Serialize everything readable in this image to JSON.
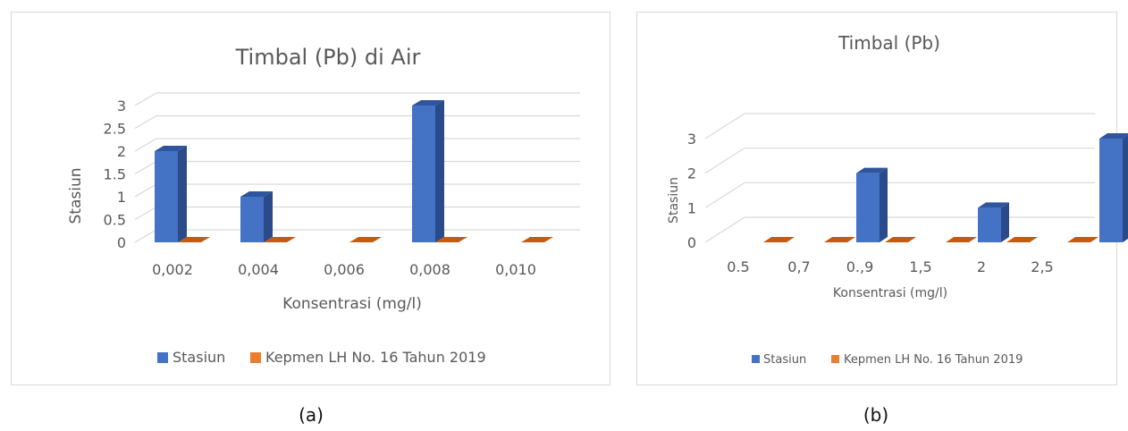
{
  "chart_data": [
    {
      "type": "bar",
      "title": "Timbal (Pb) di Air",
      "xlabel": "Konsentrasi (mg/l)",
      "ylabel": "Stasiun",
      "categories": [
        "0,002",
        "0,004",
        "0,006",
        "0,008",
        "0,010"
      ],
      "series": [
        {
          "name": "Stasiun",
          "values": [
            2,
            1,
            0,
            3,
            0
          ]
        },
        {
          "name": "Kepmen LH No. 16 Tahun 2019",
          "values": [
            0,
            0,
            0,
            0,
            0
          ]
        }
      ],
      "yticks": [
        "0",
        "0.5",
        "1",
        "1.5",
        "2",
        "2.5",
        "3"
      ],
      "ylim": [
        0,
        3
      ],
      "grid": true,
      "legend": "bottom",
      "caption": "(a)"
    },
    {
      "type": "bar",
      "title": "Timbal (Pb)",
      "xlabel": "Konsentrasi (mg/l)",
      "ylabel": "Stasiun",
      "categories": [
        "0.5",
        "0,7",
        "0.,9",
        "1,5",
        "2",
        "2,5"
      ],
      "series": [
        {
          "name": "Stasiun",
          "values": [
            0,
            2,
            0,
            1,
            0,
            3
          ]
        },
        {
          "name": "Kepmen LH No. 16 Tahun 2019",
          "values": [
            0,
            0,
            0,
            0,
            0,
            0
          ]
        }
      ],
      "yticks": [
        "0",
        "1",
        "2",
        "3"
      ],
      "ylim": [
        0,
        3
      ],
      "grid": true,
      "legend": "bottom",
      "caption": "(b)"
    }
  ],
  "colors": {
    "stasiun_front": "#4472c4",
    "stasiun_side": "#2a4a8a",
    "stasiun_top": "#2f559f",
    "kepmen_top": "#c55a11",
    "kepmen_front": "#9e480e"
  }
}
